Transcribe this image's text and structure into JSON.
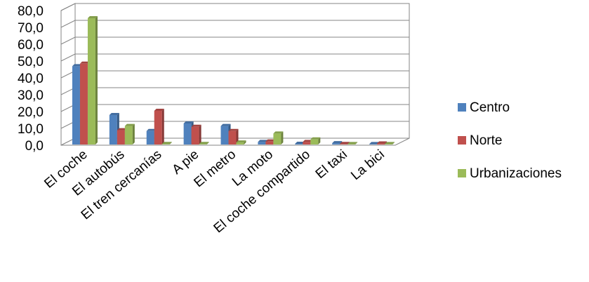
{
  "chart_data": {
    "type": "bar",
    "categories": [
      "El coche",
      "El autobús",
      "El tren cercanías",
      "A pie",
      "El metro",
      "La moto",
      "El coche compartido",
      "El taxi",
      "La bici"
    ],
    "series": [
      {
        "name": "Centro",
        "values": [
          46.5,
          17.5,
          8.0,
          12.5,
          11.0,
          1.5,
          0.4,
          0.8,
          0.2
        ]
      },
      {
        "name": "Norte",
        "values": [
          48.0,
          8.5,
          20.0,
          10.5,
          8.0,
          1.8,
          1.5,
          0.3,
          0.6
        ]
      },
      {
        "name": "Urbanizaciones",
        "values": [
          75.0,
          11.0,
          0.3,
          0.3,
          1.2,
          6.5,
          3.0,
          0.1,
          0.1
        ]
      }
    ],
    "colors": [
      "#4F81BD",
      "#C0504D",
      "#9BBB59"
    ],
    "ylim": [
      0,
      80
    ],
    "yticks": [
      "0,0",
      "10,0",
      "20,0",
      "30,0",
      "40,0",
      "50,0",
      "60,0",
      "70,0",
      "80,0"
    ],
    "grid": true,
    "legend": "right",
    "style": "3d-clustered-column"
  }
}
